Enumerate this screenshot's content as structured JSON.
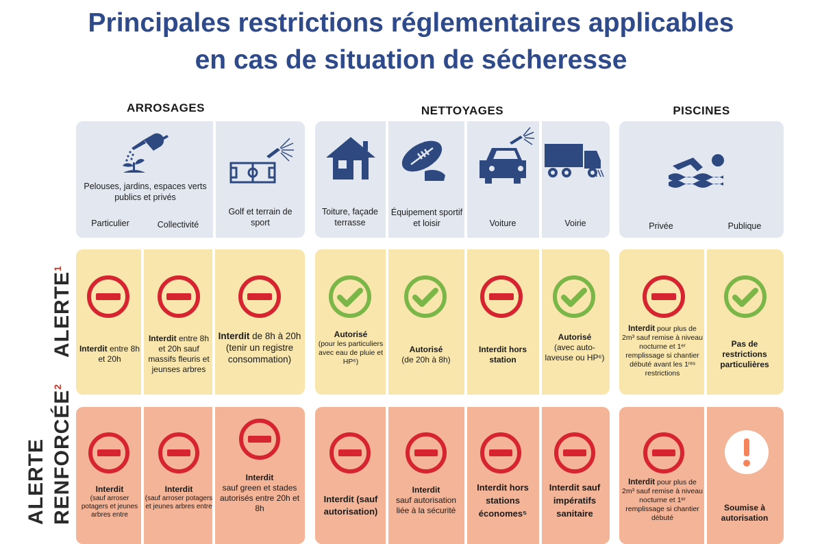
{
  "title": {
    "line1": "Principales restrictions réglementaires applicables",
    "line2": "en cas de situation de sécheresse"
  },
  "groups": {
    "arrosages": "ARROSAGES",
    "nettoyages": "NETTOYAGES",
    "piscines": "PISCINES"
  },
  "headers": {
    "pelouses": "Pelouses, jardins, espaces verts publics et privés",
    "particulier": "Particulier",
    "collectivite": "Collectivité",
    "golf": "Golf et terrain de sport",
    "toiture": "Toiture, façade terrasse",
    "equipement": "Équipement sportif et loisir",
    "voiture": "Voiture",
    "voirie": "Voirie",
    "privee": "Privée",
    "publique": "Publique"
  },
  "rows": {
    "alerte": {
      "label": "ALERTE",
      "sup": "1"
    },
    "renforcee": {
      "label1": "ALERTE",
      "label2": "RENFORCÉE",
      "sup": "2"
    }
  },
  "alerte_cells": {
    "c1": {
      "b": "Interdit",
      "t": "entre 8h et 20h"
    },
    "c2": {
      "b": "Interdit",
      "t": "entre 8h et 20h sauf massifs fleuris et jeunses arbres"
    },
    "c3": {
      "b": "Interdit",
      "t": "de 8h à 20h (tenir un registre consommation)"
    },
    "c4": {
      "b": "Autorisé",
      "t": "(pour les particuliers avec eau de pluie et HP⁶)"
    },
    "c5": {
      "b": "Autorisé",
      "t": "(de 20h à 8h)"
    },
    "c6": {
      "b": "Interdit hors station",
      "t": ""
    },
    "c7": {
      "b": "Autorisé",
      "t": "(avec auto-laveuse ou HP⁶)"
    },
    "c8": {
      "b": "Interdit",
      "t": "pour plus de 2m³ sauf remise à niveau nocturne et 1ᵉʳ remplissage si chantier débuté avant les 1ʳᵉˢ restrictions"
    },
    "c9": {
      "b": "Pas de restrictions particulières",
      "t": ""
    }
  },
  "renforcee_cells": {
    "c1": {
      "b": "Interdit",
      "t": "(sauf arroser potagers et jeunes arbres entre"
    },
    "c2": {
      "b": "Interdit",
      "t": "(sauf arroser potagers et jeunes arbres entre"
    },
    "c3": {
      "b": "Interdit",
      "t": "sauf green et stades autorisés entre 20h et 8h"
    },
    "c4": {
      "b": "Interdit (sauf autorisation)",
      "t": ""
    },
    "c5": {
      "b": "Interdit",
      "t": "sauf autorisation liée à la sécurité"
    },
    "c6": {
      "b": "Interdit hors stations économes⁵",
      "t": ""
    },
    "c7": {
      "b": "Interdit sauf impératifs sanitaire",
      "t": ""
    },
    "c8": {
      "b": "Interdit",
      "t": "pour plus de 2m³ sauf remise à niveau nocturne et 1ᵉʳ remplissage si chantier débuté"
    },
    "c9": {
      "b": "Soumise à autorisation",
      "t": ""
    }
  },
  "colors": {
    "title": "#2f4a8a",
    "forbidden": "#d62430",
    "allowed": "#7ab648",
    "warning": "#f5845a",
    "header_bg": "#e3e8f0",
    "alerte_bg": "#f8e6ac",
    "renforcee_bg": "#f4b497",
    "icon_blue": "#2e4980"
  }
}
